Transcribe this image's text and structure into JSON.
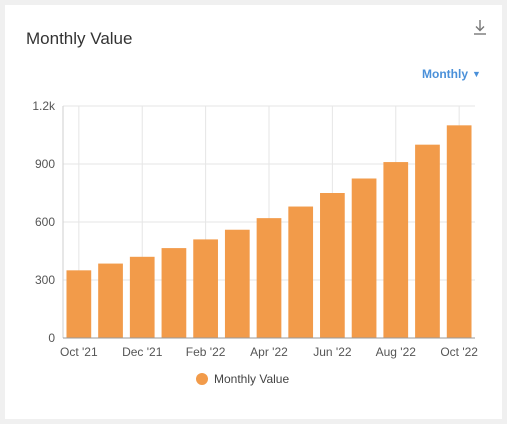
{
  "card": {
    "title": "Monthly Value",
    "period_label": "Monthly",
    "download_icon": "download-icon"
  },
  "colors": {
    "bar": "#f29b4a",
    "accent": "#4a90d9",
    "grid": "#e6e6e6"
  },
  "chart_data": {
    "type": "bar",
    "title": "Monthly Value",
    "categories": [
      "Oct '21",
      "Nov '21",
      "Dec '21",
      "Jan '22",
      "Feb '22",
      "Mar '22",
      "Apr '22",
      "May '22",
      "Jun '22",
      "Jul '22",
      "Aug '22",
      "Sep '22",
      "Oct '22"
    ],
    "x_tick_labels": [
      "Oct '21",
      "Dec '21",
      "Feb '22",
      "Apr '22",
      "Jun '22",
      "Aug '22",
      "Oct '22"
    ],
    "series": [
      {
        "name": "Monthly Value",
        "values": [
          350,
          385,
          420,
          465,
          510,
          560,
          620,
          680,
          750,
          825,
          910,
          1000,
          1100
        ]
      }
    ],
    "ylim": [
      0,
      1200
    ],
    "y_ticks": [
      0,
      300,
      600,
      900,
      1200
    ],
    "y_tick_labels": [
      "0",
      "300",
      "600",
      "900",
      "1.2k"
    ],
    "grid": true,
    "legend": "bottom"
  }
}
